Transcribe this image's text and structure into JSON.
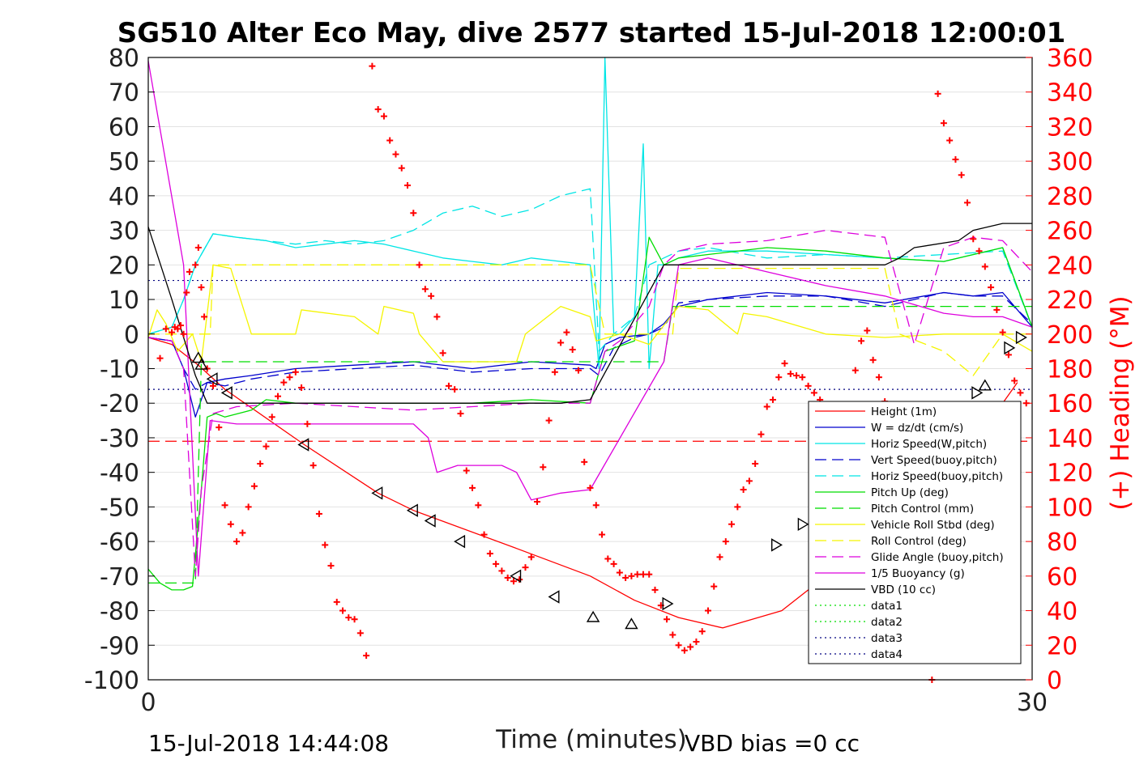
{
  "chart_data": {
    "type": "line",
    "title": "SG510 Alter Eco May, dive 2577 started 15-Jul-2018 12:00:01",
    "xlabel": "Time (minutes)",
    "ylabel_left": "",
    "ylabel_right": "(+) Heading (°M)",
    "footer_left": "15-Jul-2018 14:44:08",
    "footer_right": "VBD bias =0 cc",
    "xlim": [
      0,
      30
    ],
    "ylim_left": [
      -100,
      80
    ],
    "ylim_right": [
      0,
      360
    ],
    "x_ticks": [
      "0",
      "30"
    ],
    "y_ticks_left": [
      "80",
      "70",
      "60",
      "50",
      "40",
      "30",
      "20",
      "10",
      "0",
      "-10",
      "-20",
      "-30",
      "-40",
      "-50",
      "-60",
      "-70",
      "-80",
      "-90",
      "-100"
    ],
    "y_ticks_right": [
      "360",
      "340",
      "320",
      "300",
      "280",
      "260",
      "240",
      "220",
      "200",
      "180",
      "160",
      "140",
      "120",
      "100",
      "80",
      "60",
      "40",
      "20",
      "0"
    ],
    "grid": true,
    "legend_position": "lower-right",
    "colors": {
      "red": "#ff0000",
      "blue": "#0000cd",
      "cyan": "#00e5e5",
      "green": "#00dd00",
      "yellow": "#f5f500",
      "magenta": "#dd00dd",
      "black": "#000000"
    },
    "series": [
      {
        "name": "Height (1m)",
        "color": "#ff0000",
        "dash": "solid",
        "x": [
          0,
          0.8,
          1.7,
          2.6,
          5.3,
          7.8,
          9.0,
          12.5,
          15,
          16.5,
          18,
          19.5,
          21.5,
          23,
          25,
          26.5,
          27.5,
          28.2,
          29.0,
          29.5
        ],
        "y": [
          -1,
          -3,
          -9,
          -16,
          -32,
          -46,
          -51,
          -62,
          -70,
          -77,
          -82,
          -85,
          -80,
          -70,
          -58,
          -45,
          -35,
          -28,
          -20,
          -14
        ]
      },
      {
        "name": "W = dz/dt (cm/s)",
        "color": "#0000cd",
        "dash": "solid",
        "x": [
          0,
          0.8,
          1.2,
          1.6,
          2.0,
          2.6,
          3.5,
          5,
          7,
          9,
          11,
          13,
          15,
          15.2,
          15.5,
          16,
          17,
          17.5,
          18,
          19,
          21,
          23,
          25,
          27,
          28,
          29,
          30
        ],
        "y": [
          -1,
          -2,
          -10,
          -24,
          -14,
          -13,
          -12,
          -10,
          -9,
          -8,
          -10,
          -8,
          -9,
          -10,
          -3,
          -1,
          0,
          3,
          8,
          10,
          12,
          11,
          9,
          12,
          11,
          12,
          2
        ]
      },
      {
        "name": "Horiz Speed(W,pitch)",
        "color": "#00e5e5",
        "dash": "solid",
        "x": [
          0,
          0.8,
          1.2,
          1.6,
          2.2,
          3,
          4,
          5,
          6,
          7,
          8,
          9,
          10,
          11,
          12,
          13,
          14,
          15,
          15.3,
          15.5,
          15.8,
          16,
          16.5,
          16.8,
          17,
          17.3,
          17.5,
          18,
          19,
          21,
          23,
          25,
          27,
          29,
          30
        ],
        "y": [
          0,
          2,
          10,
          20,
          29,
          28,
          27,
          25,
          26,
          27,
          26,
          24,
          22,
          21,
          20,
          22,
          21,
          20,
          -10,
          80,
          0,
          0,
          5,
          55,
          -10,
          20,
          20,
          22,
          24,
          24,
          23,
          22,
          21,
          25,
          2
        ]
      },
      {
        "name": "Vert Speed(buoy,pitch)",
        "color": "#0000cd",
        "dash": "dash",
        "x": [
          0,
          0.8,
          1.2,
          1.6,
          2.0,
          2.6,
          3.5,
          5,
          7,
          9,
          11,
          13,
          15,
          15.3,
          15.8,
          16.5,
          17,
          17.5,
          18,
          19,
          21,
          23,
          25,
          27,
          28,
          29,
          30
        ],
        "y": [
          -1,
          -2,
          -10,
          -16,
          -14,
          -15,
          -13,
          -11,
          -10,
          -9,
          -11,
          -10,
          -10,
          -12,
          -4,
          -1,
          0,
          2,
          9,
          10,
          11,
          11,
          8,
          12,
          11,
          11,
          3
        ]
      },
      {
        "name": "Horiz Speed(buoy,pitch)",
        "color": "#00e5e5",
        "dash": "dash",
        "x": [
          0,
          0.8,
          1.2,
          1.6,
          2.2,
          3,
          4,
          5,
          6,
          7,
          8,
          9,
          10,
          11,
          12,
          13,
          14,
          15,
          15.3,
          15.8,
          16.5,
          17,
          17.5,
          18,
          19,
          21,
          23,
          25,
          27,
          29,
          30
        ],
        "y": [
          0,
          2,
          10,
          20,
          29,
          28,
          27,
          26,
          27,
          26,
          27,
          30,
          35,
          37,
          34,
          36,
          40,
          42,
          -5,
          0,
          5,
          20,
          22,
          24,
          25,
          22,
          23,
          22,
          23,
          24,
          2
        ]
      },
      {
        "name": "Pitch Up (deg)",
        "color": "#00dd00",
        "dash": "solid",
        "x": [
          0,
          0.4,
          0.8,
          1.2,
          1.5,
          1.8,
          2.0,
          2.3,
          2.6,
          3.5,
          4,
          5,
          7,
          9,
          11,
          13,
          15,
          15.5,
          16.5,
          17,
          17.5,
          18,
          19,
          21,
          23,
          25,
          27,
          29,
          30
        ],
        "y": [
          -68,
          -72,
          -74,
          -74,
          -73,
          -45,
          -24,
          -23,
          -24,
          -22,
          -19,
          -20,
          -20,
          -20,
          -20,
          -19,
          -20,
          -5,
          -2,
          28,
          20,
          22,
          23,
          25,
          24,
          22,
          21,
          25,
          2
        ]
      },
      {
        "name": "Pitch Control (mm)",
        "color": "#00dd00",
        "dash": "dash",
        "x": [
          0,
          1.6,
          1.8,
          15,
          15.5,
          17.5,
          17.8,
          30
        ],
        "y": [
          -72,
          -72,
          -8,
          -8,
          -8,
          -8,
          8,
          8
        ]
      },
      {
        "name": "Vehicle Roll Stbd (deg)",
        "color": "#f5f500",
        "dash": "solid",
        "x": [
          0,
          0.3,
          0.6,
          1.0,
          1.5,
          1.8,
          2.2,
          2.8,
          3.5,
          5,
          5.2,
          7,
          7.8,
          8,
          9,
          9.2,
          10,
          12.5,
          12.8,
          14,
          15,
          15.2,
          16,
          17,
          18,
          19,
          20,
          20.2,
          21,
          23,
          25,
          27,
          29,
          30
        ],
        "y": [
          -1,
          7,
          3,
          -5,
          0,
          -8,
          20,
          19,
          0,
          0,
          7,
          5,
          0,
          8,
          6,
          0,
          -8,
          -8,
          0,
          8,
          5,
          -2,
          0,
          -3,
          8,
          7,
          0,
          6,
          5,
          0,
          -1,
          0,
          0,
          -5
        ]
      },
      {
        "name": "Roll Control (deg)",
        "color": "#f5f500",
        "dash": "dash",
        "x": [
          0,
          2.1,
          2.2,
          15,
          15.5,
          17.8,
          18,
          25,
          25.5,
          27,
          28,
          29,
          30
        ],
        "y": [
          0,
          0,
          20,
          20,
          0,
          0,
          19,
          19,
          0,
          -5,
          -12,
          0,
          0
        ]
      },
      {
        "name": "Glide Angle (buoy,pitch)",
        "color": "#dd00dd",
        "dash": "dash",
        "x": [
          0,
          0.8,
          1.2,
          1.6,
          1.8,
          2.2,
          3,
          5,
          7,
          9,
          11,
          13,
          15,
          15.5,
          16,
          17,
          17.5,
          18,
          19,
          21,
          23,
          25,
          26,
          27,
          28,
          29,
          30
        ],
        "y": [
          -1,
          -2,
          -10,
          -70,
          -45,
          -23,
          -21,
          -20,
          -21,
          -22,
          -21,
          -20,
          -20,
          -5,
          -2,
          8,
          20,
          24,
          26,
          27,
          30,
          28,
          -3,
          25,
          28,
          27,
          18
        ]
      },
      {
        "name": "1/5 Buoyancy (g)",
        "color": "#dd00dd",
        "dash": "solid",
        "x": [
          0,
          1.2,
          1.7,
          2.1,
          3,
          5,
          7,
          9,
          9.5,
          9.8,
          10.5,
          11,
          12,
          12.5,
          13,
          14,
          15,
          17.5,
          18,
          19,
          21,
          23,
          25,
          27,
          28,
          29,
          30
        ],
        "y": [
          79,
          20,
          -70,
          -25,
          -26,
          -26,
          -26,
          -26,
          -30,
          -40,
          -38,
          -38,
          -38,
          -40,
          -48,
          -46,
          -45,
          -8,
          20,
          22,
          18,
          14,
          11,
          6,
          5,
          5,
          2
        ]
      },
      {
        "name": "VBD (10 cc)",
        "color": "#000000",
        "dash": "solid",
        "x": [
          0,
          0.8,
          1.6,
          2,
          5,
          8,
          11,
          14,
          15,
          17.5,
          18,
          20,
          23,
          25,
          25.5,
          26,
          27.5,
          28,
          29,
          30
        ],
        "y": [
          31,
          10,
          -12,
          -20,
          -20,
          -20,
          -20,
          -20,
          -19,
          20,
          20,
          20,
          20,
          20,
          22,
          25,
          27,
          30,
          32,
          32
        ]
      },
      {
        "name": "data1",
        "color": "#00dd00",
        "dash": "dot",
        "x": [],
        "y": []
      },
      {
        "name": "data2",
        "color": "#00dd00",
        "dash": "dot",
        "x": [],
        "y": []
      },
      {
        "name": "data3",
        "color": "#000080",
        "dash": "dot",
        "x": [],
        "y": []
      },
      {
        "name": "data4",
        "color": "#000080",
        "dash": "dot",
        "x": [],
        "y": []
      }
    ],
    "hlines": [
      {
        "y": 15.5,
        "color": "#000080",
        "dash": "dot"
      },
      {
        "y": -16,
        "color": "#000080",
        "dash": "dot"
      },
      {
        "y": -31,
        "color": "#ff0000",
        "dash": "dash"
      }
    ],
    "triangle_markers": {
      "color": "#000000",
      "points": [
        {
          "x": 1.7,
          "y": -7,
          "dir": "up"
        },
        {
          "x": 1.8,
          "y": -9,
          "dir": "up"
        },
        {
          "x": 2.2,
          "y": -13,
          "dir": "left"
        },
        {
          "x": 2.7,
          "y": -17,
          "dir": "left"
        },
        {
          "x": 5.3,
          "y": -32,
          "dir": "left"
        },
        {
          "x": 7.8,
          "y": -46,
          "dir": "left"
        },
        {
          "x": 9.0,
          "y": -51,
          "dir": "left"
        },
        {
          "x": 9.6,
          "y": -54,
          "dir": "left"
        },
        {
          "x": 10.6,
          "y": -60,
          "dir": "left"
        },
        {
          "x": 12.5,
          "y": -70,
          "dir": "left"
        },
        {
          "x": 13.8,
          "y": -76,
          "dir": "left"
        },
        {
          "x": 15.1,
          "y": -82,
          "dir": "up"
        },
        {
          "x": 16.4,
          "y": -84,
          "dir": "up"
        },
        {
          "x": 17.6,
          "y": -78,
          "dir": "right"
        },
        {
          "x": 21.3,
          "y": -61,
          "dir": "right"
        },
        {
          "x": 22.2,
          "y": -55,
          "dir": "right"
        },
        {
          "x": 28.1,
          "y": -17,
          "dir": "right"
        },
        {
          "x": 28.4,
          "y": -15,
          "dir": "up"
        },
        {
          "x": 29.2,
          "y": -4,
          "dir": "right"
        },
        {
          "x": 29.6,
          "y": -1,
          "dir": "right"
        }
      ]
    },
    "heading": {
      "name": "(+) Heading",
      "axis": "right",
      "color": "#ff0000",
      "marker": "+",
      "x": [
        0.4,
        0.6,
        0.8,
        0.9,
        1.0,
        1.1,
        1.2,
        1.3,
        1.4,
        1.6,
        1.7,
        1.8,
        1.9,
        2.0,
        2.2,
        2.4,
        2.6,
        2.8,
        3.0,
        3.2,
        3.4,
        3.6,
        3.8,
        4.0,
        4.2,
        4.4,
        4.6,
        4.8,
        5.0,
        5.2,
        5.4,
        5.6,
        5.8,
        6.0,
        6.2,
        6.4,
        6.6,
        6.8,
        7.0,
        7.2,
        7.4,
        7.6,
        7.8,
        8.0,
        8.2,
        8.4,
        8.6,
        8.8,
        9.0,
        9.2,
        9.4,
        9.6,
        9.8,
        10.0,
        10.2,
        10.4,
        10.6,
        10.8,
        11.0,
        11.2,
        11.4,
        11.6,
        11.8,
        12.0,
        12.2,
        12.4,
        12.6,
        12.8,
        13.0,
        13.2,
        13.4,
        13.6,
        13.8,
        14.0,
        14.2,
        14.4,
        14.6,
        14.8,
        15.0,
        15.2,
        15.4,
        15.6,
        15.8,
        16.0,
        16.2,
        16.4,
        16.6,
        16.8,
        17.0,
        17.2,
        17.4,
        17.6,
        17.8,
        18.0,
        18.2,
        18.4,
        18.6,
        18.8,
        19.0,
        19.2,
        19.4,
        19.6,
        19.8,
        20.0,
        20.2,
        20.4,
        20.6,
        20.8,
        21.0,
        21.2,
        21.4,
        21.6,
        21.8,
        22.0,
        22.2,
        22.4,
        22.6,
        22.8,
        23.0,
        23.2,
        23.4,
        23.6,
        23.8,
        24.0,
        24.2,
        24.4,
        24.6,
        24.8,
        25.0,
        25.2,
        25.4,
        25.6,
        25.8,
        26.0,
        26.2,
        26.4,
        26.6,
        26.8,
        27.0,
        27.2,
        27.4,
        27.6,
        27.8,
        28.0,
        28.2,
        28.4,
        28.6,
        28.8,
        29.0,
        29.2,
        29.4,
        29.6,
        29.8
      ],
      "y": [
        186,
        203,
        201,
        204,
        203,
        205,
        200,
        224,
        236,
        240,
        250,
        227,
        210,
        180,
        170,
        146,
        101,
        90,
        80,
        85,
        100,
        112,
        125,
        135,
        152,
        164,
        172,
        175,
        178,
        169,
        148,
        124,
        96,
        78,
        66,
        45,
        40,
        36,
        35,
        27,
        14,
        355,
        330,
        326,
        312,
        304,
        296,
        286,
        270,
        240,
        226,
        222,
        210,
        189,
        170,
        168,
        154,
        121,
        111,
        101,
        84,
        73,
        67,
        63,
        59,
        57,
        58,
        65,
        71,
        103,
        123,
        150,
        178,
        195,
        201,
        191,
        179,
        126,
        111,
        101,
        84,
        70,
        67,
        62,
        59,
        60,
        61,
        61,
        61,
        52,
        43,
        35,
        26,
        20,
        17,
        19,
        22,
        28,
        40,
        54,
        71,
        80,
        90,
        100,
        110,
        115,
        125,
        142,
        158,
        162,
        175,
        183,
        177,
        176,
        175,
        170,
        166,
        162,
        153,
        143,
        136,
        139,
        149,
        179,
        196,
        202,
        185,
        175,
        161,
        138,
        122,
        101,
        108,
        121,
        145,
        125,
        0,
        339,
        322,
        312,
        301,
        292,
        276,
        255,
        248,
        239,
        227,
        214,
        201,
        188,
        173,
        166,
        160
      ]
    }
  }
}
